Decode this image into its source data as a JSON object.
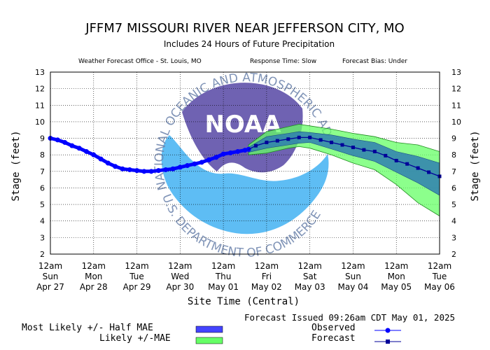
{
  "header": {
    "title": "JFFM7 MISSOURI RIVER NEAR JEFFERSON CITY, MO",
    "subtitle": "Includes  24 Hours of Future Precipitation",
    "office": "Weather Forecast Office - St. Louis, MO",
    "response_time": "Response Time: Slow",
    "forecast_bias": "Forecast Bias:  Under"
  },
  "watermark": {
    "text": "NOAA",
    "ring_text": "NATIONAL OCEANIC AND ATMOSPHERIC ADMINISTRATION",
    "bottom_text": "U.S. DEPARTMENT OF COMMERCE"
  },
  "footer": {
    "issued": "Forecast Issued 09:26am CDT May 01, 2025"
  },
  "legend": {
    "most_likely": "Most Likely +/- Half MAE",
    "likely": "Likely +/-MAE",
    "observed": "Observed",
    "forecast": "Forecast"
  },
  "colors": {
    "observed": "#0000ff",
    "forecast": "#000099",
    "half_mae": "#4444ff",
    "mae": "#66ff66",
    "noaa_purple": "#5f51aa",
    "noaa_blue": "#4cb6f3"
  },
  "chart_data": {
    "type": "line",
    "xlabel": "Site Time (Central)",
    "ylabel": "Stage (feet)",
    "xlim": [
      0,
      216
    ],
    "ylim": [
      2,
      13
    ],
    "y_ticks": [
      2,
      3,
      4,
      5,
      6,
      7,
      8,
      9,
      10,
      11,
      12,
      13
    ],
    "grid": true,
    "x_ticks": [
      {
        "hour": 0,
        "lines": [
          "12am",
          "Sun",
          "Apr 27"
        ]
      },
      {
        "hour": 24,
        "lines": [
          "12am",
          "Mon",
          "Apr 28"
        ]
      },
      {
        "hour": 48,
        "lines": [
          "12am",
          "Tue",
          "Apr 29"
        ]
      },
      {
        "hour": 72,
        "lines": [
          "12am",
          "Wed",
          "Apr 30"
        ]
      },
      {
        "hour": 96,
        "lines": [
          "12am",
          "Thu",
          "May 01"
        ]
      },
      {
        "hour": 120,
        "lines": [
          "12am",
          "Fri",
          "May 02"
        ]
      },
      {
        "hour": 144,
        "lines": [
          "12am",
          "Sat",
          "May 03"
        ]
      },
      {
        "hour": 168,
        "lines": [
          "12am",
          "Sun",
          "May 04"
        ]
      },
      {
        "hour": 192,
        "lines": [
          "12am",
          "Mon",
          "May 05"
        ]
      },
      {
        "hour": 216,
        "lines": [
          "12am",
          "Tue",
          "May 06"
        ]
      }
    ],
    "series": [
      {
        "name": "Observed",
        "x": [
          0,
          4,
          8,
          12,
          16,
          20,
          24,
          28,
          32,
          36,
          40,
          44,
          48,
          52,
          56,
          60,
          64,
          68,
          72,
          76,
          80,
          84,
          88,
          92,
          96,
          100,
          104,
          108,
          110
        ],
        "y": [
          9.0,
          8.9,
          8.75,
          8.55,
          8.4,
          8.2,
          8.0,
          7.75,
          7.5,
          7.3,
          7.15,
          7.1,
          7.05,
          7.0,
          7.0,
          7.05,
          7.1,
          7.15,
          7.25,
          7.35,
          7.45,
          7.55,
          7.7,
          7.85,
          8.05,
          8.12,
          8.2,
          8.28,
          8.33
        ]
      },
      {
        "name": "Forecast",
        "x": [
          110,
          114,
          120,
          126,
          132,
          138,
          144,
          150,
          156,
          162,
          168,
          174,
          180,
          186,
          192,
          198,
          204,
          210,
          216
        ],
        "y": [
          8.33,
          8.55,
          8.75,
          8.85,
          8.95,
          9.05,
          9.05,
          8.9,
          8.75,
          8.6,
          8.45,
          8.3,
          8.2,
          7.95,
          7.65,
          7.45,
          7.2,
          6.95,
          6.7
        ]
      }
    ],
    "likely_band": {
      "x": [
        110,
        120,
        132,
        138,
        144,
        156,
        168,
        180,
        192,
        204,
        216
      ],
      "upper": [
        8.6,
        9.4,
        9.7,
        9.85,
        9.75,
        9.55,
        9.3,
        9.1,
        8.75,
        8.6,
        8.2
      ],
      "lower": [
        8.0,
        8.1,
        8.4,
        8.5,
        8.4,
        8.0,
        7.5,
        7.1,
        6.2,
        5.1,
        4.3
      ]
    },
    "most_likely_band": {
      "x": [
        110,
        120,
        132,
        138,
        144,
        156,
        168,
        180,
        192,
        204,
        216
      ],
      "upper": [
        8.45,
        9.1,
        9.3,
        9.4,
        9.35,
        9.2,
        8.95,
        8.75,
        8.2,
        7.9,
        7.5
      ],
      "lower": [
        8.15,
        8.4,
        8.6,
        8.7,
        8.75,
        8.35,
        7.95,
        7.6,
        6.95,
        6.3,
        5.55
      ]
    }
  }
}
